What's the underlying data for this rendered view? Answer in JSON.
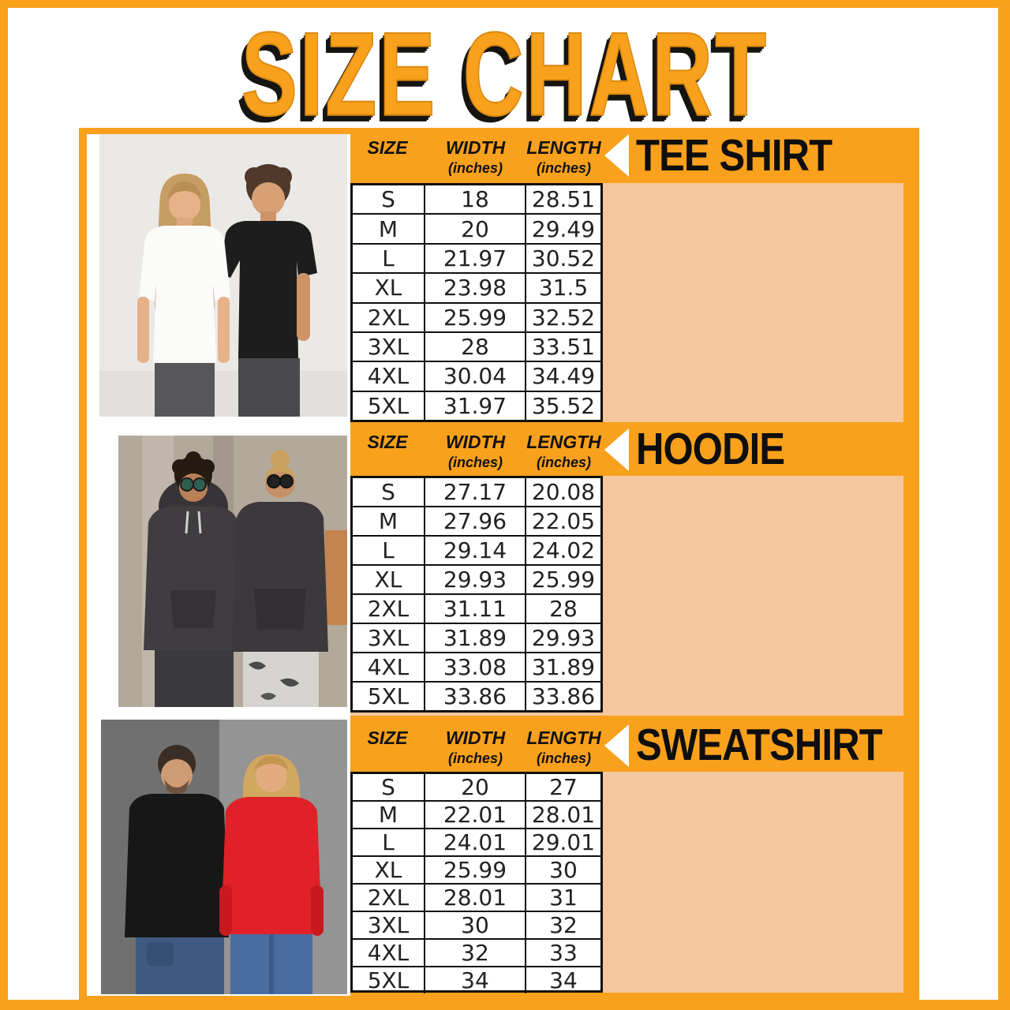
{
  "title": "SIZE CHART",
  "colors": {
    "orange": "#F9A11D",
    "peach": "#F4C79D",
    "table_border": "#101010",
    "title_shadow": "#161410",
    "text": "#111111"
  },
  "icons": {
    "section_arrow": "white-left-triangle"
  },
  "table_columns": {
    "size": "SIZE",
    "width": "WIDTH",
    "length": "LENGTH",
    "unit": "(inches)"
  },
  "sections": [
    {
      "product": "TEE SHIRT",
      "rows": [
        {
          "size": "S",
          "width": "18",
          "length": "28.51"
        },
        {
          "size": "M",
          "width": "20",
          "length": "29.49"
        },
        {
          "size": "L",
          "width": "21.97",
          "length": "30.52"
        },
        {
          "size": "XL",
          "width": "23.98",
          "length": "31.5"
        },
        {
          "size": "2XL",
          "width": "25.99",
          "length": "32.52"
        },
        {
          "size": "3XL",
          "width": "28",
          "length": "33.51"
        },
        {
          "size": "4XL",
          "width": "30.04",
          "length": "34.49"
        },
        {
          "size": "5XL",
          "width": "31.97",
          "length": "35.52"
        }
      ]
    },
    {
      "product": "HOODIE",
      "rows": [
        {
          "size": "S",
          "width": "27.17",
          "length": "20.08"
        },
        {
          "size": "M",
          "width": "27.96",
          "length": "22.05"
        },
        {
          "size": "L",
          "width": "29.14",
          "length": "24.02"
        },
        {
          "size": "XL",
          "width": "29.93",
          "length": "25.99"
        },
        {
          "size": "2XL",
          "width": "31.11",
          "length": "28"
        },
        {
          "size": "3XL",
          "width": "31.89",
          "length": "29.93"
        },
        {
          "size": "4XL",
          "width": "33.08",
          "length": "31.89"
        },
        {
          "size": "5XL",
          "width": "33.86",
          "length": "33.86"
        }
      ]
    },
    {
      "product": "SWEATSHIRT",
      "rows": [
        {
          "size": "S",
          "width": "20",
          "length": "27"
        },
        {
          "size": "M",
          "width": "22.01",
          "length": "28.01"
        },
        {
          "size": "L",
          "width": "24.01",
          "length": "29.01"
        },
        {
          "size": "XL",
          "width": "25.99",
          "length": "30"
        },
        {
          "size": "2XL",
          "width": "28.01",
          "length": "31"
        },
        {
          "size": "3XL",
          "width": "30",
          "length": "32"
        },
        {
          "size": "4XL",
          "width": "32",
          "length": "33"
        },
        {
          "size": "5XL",
          "width": "34",
          "length": "34"
        }
      ]
    }
  ]
}
